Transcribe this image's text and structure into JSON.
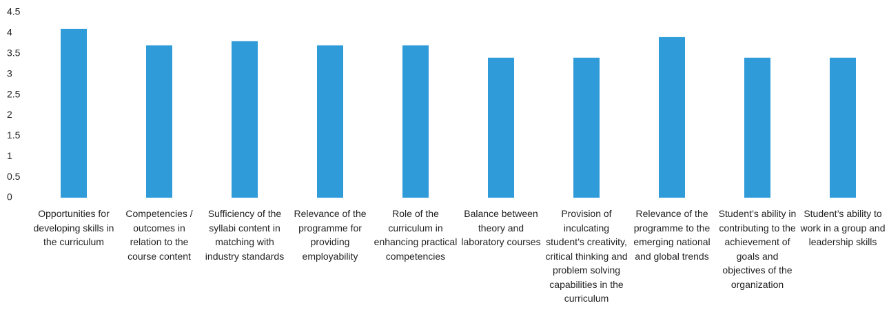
{
  "chart_data": {
    "type": "bar",
    "categories": [
      "Opportunities for developing skills in the curriculum",
      "Competencies / outcomes in relation to the course content",
      "Sufficiency of the syllabi content in matching with industry standards",
      "Relevance of the programme for providing employability",
      "Role of the curriculum in enhancing practical competencies",
      "Balance between theory and laboratory courses",
      "Provision of inculcating student’s creativity, critical thinking and problem solving capabilities in the curriculum",
      "Relevance of the programme to the emerging national and global trends",
      "Student’s ability in contributing to the achievement of goals and objectives of the organization",
      "Student’s ability to work in a group and leadership skills"
    ],
    "values": [
      4.1,
      3.7,
      3.8,
      3.7,
      3.7,
      3.4,
      3.4,
      3.9,
      3.4,
      3.4
    ],
    "color": "#2f9bd9",
    "ylim": [
      0,
      4.5
    ],
    "yticks": [
      0,
      0.5,
      1,
      1.5,
      2,
      2.5,
      3,
      3.5,
      4,
      4.5
    ],
    "grid": false
  }
}
